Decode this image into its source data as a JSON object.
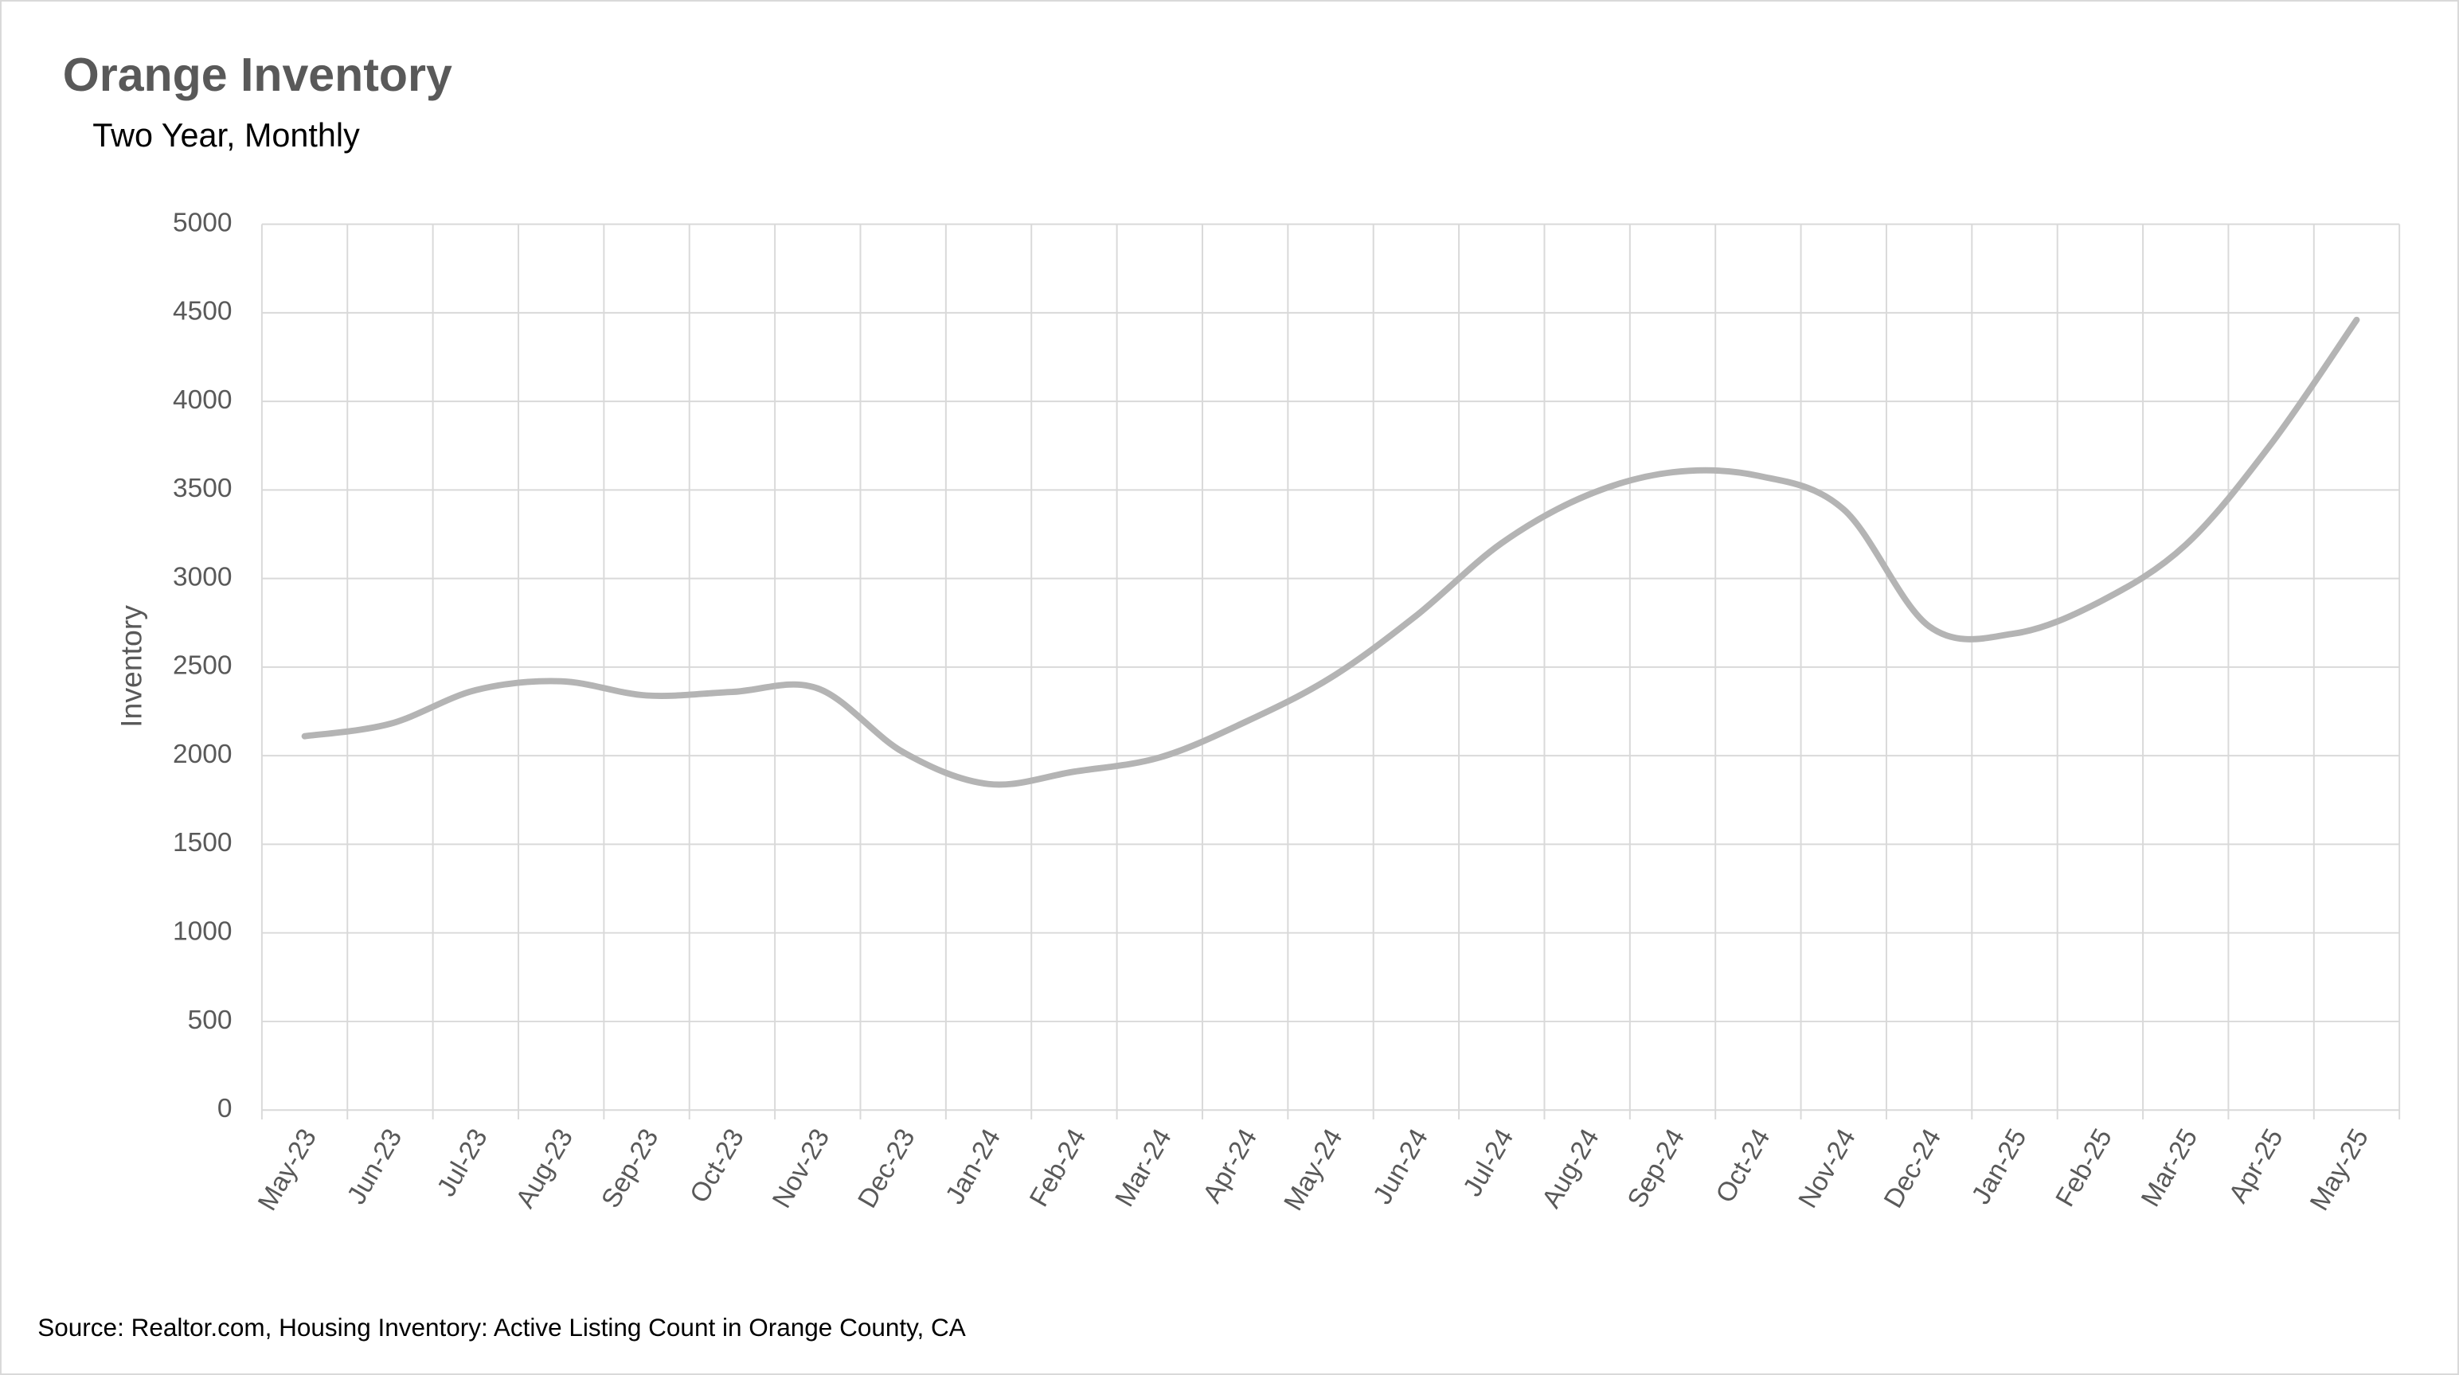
{
  "chart_data": {
    "type": "line",
    "title": "Orange Inventory",
    "subtitle": "Two Year, Monthly",
    "y_label": "Inventory",
    "source": "Source: Realtor.com, Housing Inventory: Active Listing Count in Orange County, CA",
    "categories": [
      "May-23",
      "Jun-23",
      "Jul-23",
      "Aug-23",
      "Sep-23",
      "Oct-23",
      "Nov-23",
      "Dec-23",
      "Jan-24",
      "Feb-24",
      "Mar-24",
      "Apr-24",
      "May-24",
      "Jun-24",
      "Jul-24",
      "Aug-24",
      "Sep-24",
      "Oct-24",
      "Nov-24",
      "Dec-24",
      "Jan-25",
      "Feb-25",
      "Mar-25",
      "Apr-25",
      "May-25"
    ],
    "series": [
      {
        "name": "Inventory",
        "color": "#b4b4b4",
        "values": [
          2110,
          2180,
          2370,
          2420,
          2340,
          2360,
          2380,
          2020,
          1840,
          1910,
          1990,
          2190,
          2440,
          2790,
          3200,
          3470,
          3600,
          3580,
          3390,
          2730,
          2690,
          2870,
          3190,
          3760,
          4460
        ]
      }
    ],
    "ylim": [
      0,
      5000
    ],
    "yticks": [
      0,
      500,
      1000,
      1500,
      2000,
      2500,
      3000,
      3500,
      4000,
      4500,
      5000
    ],
    "grid": true,
    "smooth": true
  }
}
